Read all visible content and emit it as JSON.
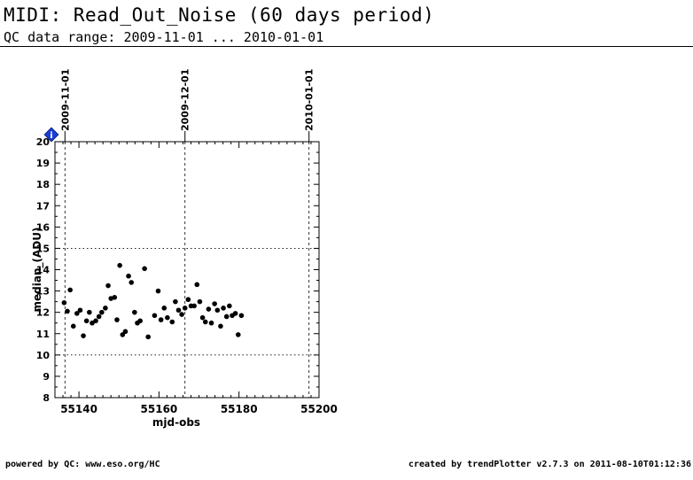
{
  "header": {
    "title": "MIDI: Read_Out_Noise (60 days period)",
    "subtitle": "QC data range: 2009-11-01 ... 2010-01-01"
  },
  "footer": {
    "left": "powered by QC: www.eso.org/HC",
    "right": "created by trendPlotter v2.7.3 on 2011-08-10T01:12:36"
  },
  "info_badge": {
    "icon": "info-diamond-icon",
    "label": "i",
    "color": "#1a3fd8"
  },
  "chart_data": {
    "type": "scatter",
    "xlabel": "mjd-obs",
    "ylabel": "median_(ADU)",
    "xlim": [
      55134,
      55200
    ],
    "ylim": [
      8,
      20
    ],
    "x_ticks": [
      55140,
      55160,
      55180,
      55200
    ],
    "x_tick_labels": [
      "55140",
      "55160",
      "55180",
      "55200"
    ],
    "y_ticks": [
      8,
      9,
      10,
      11,
      12,
      13,
      14,
      15,
      16,
      17,
      18,
      19,
      20
    ],
    "y_tick_labels": [
      "8",
      "9",
      "10",
      "11",
      "12",
      "13",
      "14",
      "15",
      "16",
      "17",
      "18",
      "19",
      "20"
    ],
    "date_markers": [
      {
        "x": 55136.5,
        "label": "2009-11-01"
      },
      {
        "x": 55166.5,
        "label": "2009-12-01"
      },
      {
        "x": 55197.5,
        "label": "2010-01-01"
      }
    ],
    "reference_lines": [
      10,
      15
    ],
    "grid": false,
    "marker_color": "#000000",
    "points": [
      {
        "x": 55136.3,
        "y": 12.45
      },
      {
        "x": 55137.1,
        "y": 12.05
      },
      {
        "x": 55137.8,
        "y": 13.05
      },
      {
        "x": 55138.6,
        "y": 11.35
      },
      {
        "x": 55139.5,
        "y": 11.95
      },
      {
        "x": 55140.3,
        "y": 12.1
      },
      {
        "x": 55141.1,
        "y": 10.9
      },
      {
        "x": 55141.9,
        "y": 11.6
      },
      {
        "x": 55142.6,
        "y": 12.0
      },
      {
        "x": 55143.3,
        "y": 11.5
      },
      {
        "x": 55144.2,
        "y": 11.6
      },
      {
        "x": 55145.0,
        "y": 11.8
      },
      {
        "x": 55145.7,
        "y": 12.0
      },
      {
        "x": 55146.6,
        "y": 12.2
      },
      {
        "x": 55147.3,
        "y": 13.25
      },
      {
        "x": 55148.0,
        "y": 12.65
      },
      {
        "x": 55148.9,
        "y": 12.7
      },
      {
        "x": 55149.5,
        "y": 11.65
      },
      {
        "x": 55150.2,
        "y": 14.2
      },
      {
        "x": 55150.9,
        "y": 10.95
      },
      {
        "x": 55151.6,
        "y": 11.1
      },
      {
        "x": 55152.4,
        "y": 13.7
      },
      {
        "x": 55153.1,
        "y": 13.4
      },
      {
        "x": 55153.9,
        "y": 12.0
      },
      {
        "x": 55154.6,
        "y": 11.5
      },
      {
        "x": 55155.3,
        "y": 11.6
      },
      {
        "x": 55156.4,
        "y": 14.05
      },
      {
        "x": 55157.3,
        "y": 10.85
      },
      {
        "x": 55158.9,
        "y": 11.85
      },
      {
        "x": 55159.8,
        "y": 13.0
      },
      {
        "x": 55160.5,
        "y": 11.65
      },
      {
        "x": 55161.3,
        "y": 12.2
      },
      {
        "x": 55162.1,
        "y": 11.75
      },
      {
        "x": 55163.3,
        "y": 11.55
      },
      {
        "x": 55164.1,
        "y": 12.5
      },
      {
        "x": 55164.9,
        "y": 12.1
      },
      {
        "x": 55165.7,
        "y": 11.9
      },
      {
        "x": 55166.5,
        "y": 12.2
      },
      {
        "x": 55167.3,
        "y": 12.6
      },
      {
        "x": 55168.0,
        "y": 12.3
      },
      {
        "x": 55168.8,
        "y": 12.3
      },
      {
        "x": 55169.5,
        "y": 13.3
      },
      {
        "x": 55170.2,
        "y": 12.5
      },
      {
        "x": 55170.9,
        "y": 11.75
      },
      {
        "x": 55171.6,
        "y": 11.55
      },
      {
        "x": 55172.4,
        "y": 12.15
      },
      {
        "x": 55173.1,
        "y": 11.5
      },
      {
        "x": 55173.9,
        "y": 12.4
      },
      {
        "x": 55174.6,
        "y": 12.1
      },
      {
        "x": 55175.4,
        "y": 11.35
      },
      {
        "x": 55176.1,
        "y": 12.2
      },
      {
        "x": 55176.9,
        "y": 11.8
      },
      {
        "x": 55177.6,
        "y": 12.3
      },
      {
        "x": 55178.3,
        "y": 11.85
      },
      {
        "x": 55179.1,
        "y": 11.95
      },
      {
        "x": 55179.8,
        "y": 10.95
      },
      {
        "x": 55180.6,
        "y": 11.85
      }
    ]
  }
}
